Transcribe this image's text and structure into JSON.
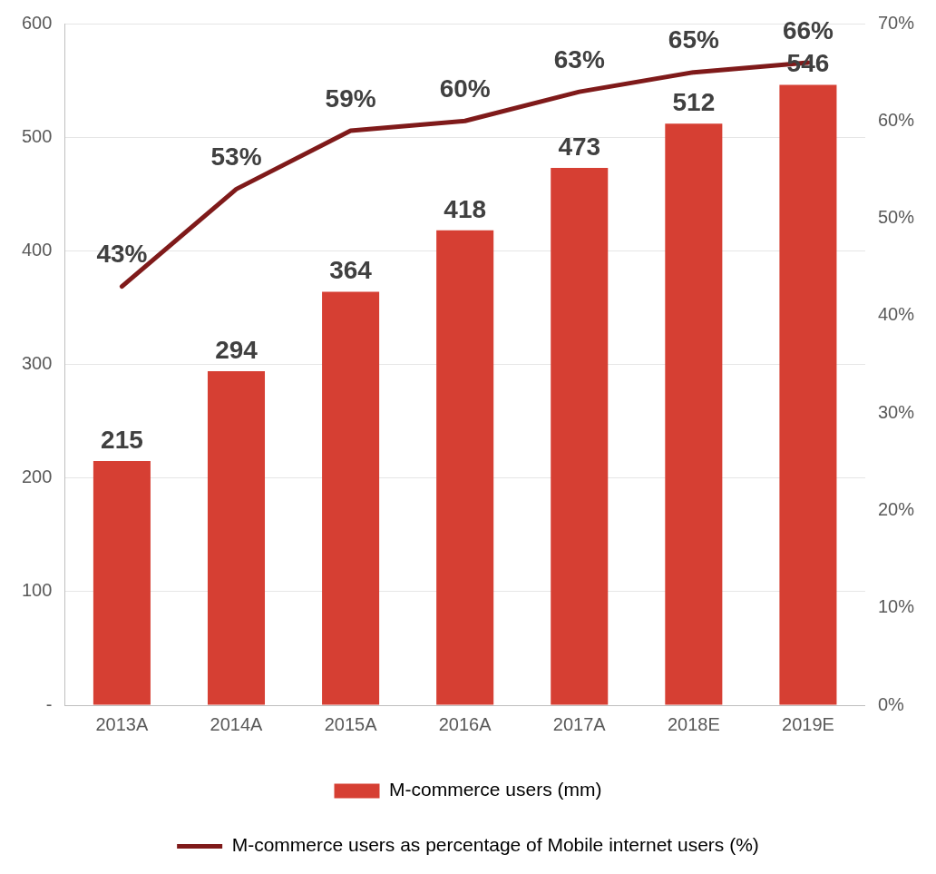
{
  "chart_data": {
    "type": "bar",
    "categories": [
      "2013A",
      "2014A",
      "2015A",
      "2016A",
      "2017A",
      "2018E",
      "2019E"
    ],
    "series": [
      {
        "name": "M-commerce users (mm)",
        "color": "#d63f33",
        "values": [
          215,
          294,
          364,
          418,
          473,
          512,
          546
        ]
      },
      {
        "name": "M-commerce users as percentage of Mobile internet users (%)",
        "type": "line",
        "axis": "y2",
        "color": "#7f1a1a",
        "values": [
          43,
          53,
          59,
          60,
          63,
          65,
          66
        ],
        "value_labels": [
          "43%",
          "53%",
          "59%",
          "60%",
          "63%",
          "65%",
          "66%"
        ]
      }
    ],
    "data_labels": true,
    "ylim": [
      0,
      600
    ],
    "yticks": [
      {
        "value": 0,
        "label": "-"
      },
      100,
      200,
      300,
      400,
      500,
      600
    ],
    "y2lim": [
      0,
      70
    ],
    "y2ticks": [
      {
        "value": 0,
        "label": "0%"
      },
      {
        "value": 10,
        "label": "10%"
      },
      {
        "value": 20,
        "label": "20%"
      },
      {
        "value": 30,
        "label": "30%"
      },
      {
        "value": 40,
        "label": "40%"
      },
      {
        "value": 50,
        "label": "50%"
      },
      {
        "value": 60,
        "label": "60%"
      },
      {
        "value": 70,
        "label": "70%"
      }
    ],
    "grid": "y",
    "legend": "bottom",
    "marker": "none",
    "line_style": "solid"
  }
}
